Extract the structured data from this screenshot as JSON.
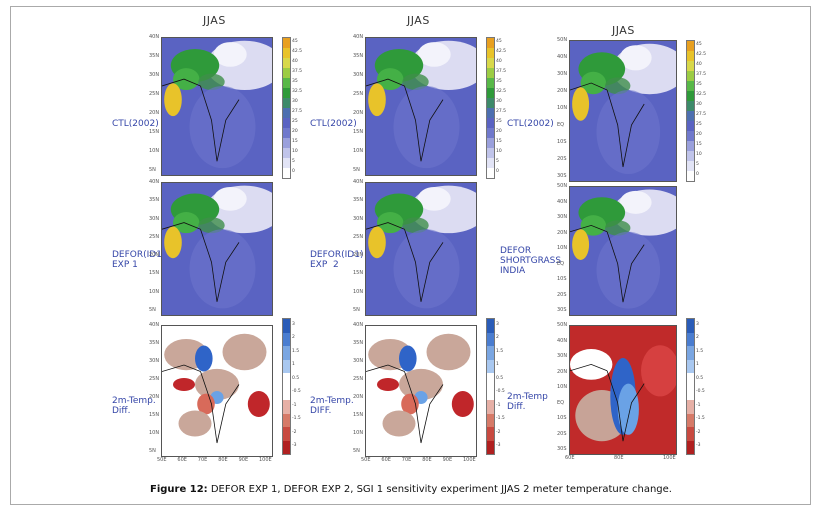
{
  "panel_titles": [
    "JJAS",
    "JJAS",
    "JJAS"
  ],
  "rows": {
    "col1": [
      "CTL(2002)",
      "DEFOR(ID1)\nEXP 1",
      "2m-Temp.\nDiff."
    ],
    "col2": [
      "CTL(2002)",
      "DEFOR(ID1)\nEXP  2",
      "2m-Temp.\nDIFF."
    ],
    "col3": [
      "CTL(2002)",
      "DEFOR\nSHORTGRASS\nINDIA",
      "2m-Temp\nDiff."
    ]
  },
  "lat_labels_small": [
    "40N",
    "35N",
    "30N",
    "25N",
    "20N",
    "15N",
    "10N",
    "5N"
  ],
  "lat_labels_large": [
    "50N",
    "40N",
    "30N",
    "20N",
    "10N",
    "EQ",
    "10S",
    "20S",
    "30S"
  ],
  "lon_labels_small": [
    "50E",
    "60E",
    "70E",
    "80E",
    "90E",
    "100E"
  ],
  "lon_labels_large": [
    "60E",
    "80E",
    "100E"
  ],
  "temp_colorbar": [
    "45",
    "42.5",
    "40",
    "37.5",
    "35",
    "32.5",
    "30",
    "27.5",
    "25",
    "20",
    "15",
    "10",
    "5",
    "0"
  ],
  "diff_colorbar": [
    "3",
    "2",
    "1.5",
    "1",
    "0.5",
    "-0.5",
    "-1",
    "-1.5",
    "-2",
    "-3"
  ],
  "caption": {
    "label": "Figure 12:",
    "text": " DEFOR EXP 1, DEFOR EXP 2, SGI 1 sensitivity experiment JJAS 2 meter temperature change."
  }
}
